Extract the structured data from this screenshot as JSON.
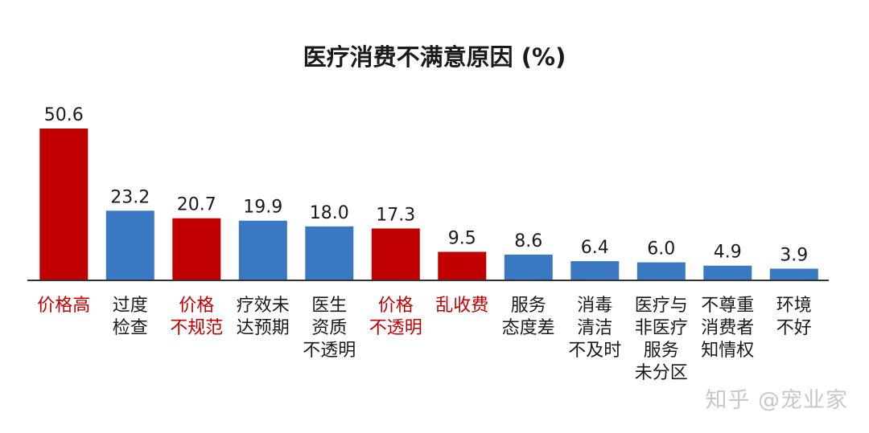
{
  "chart_data": {
    "type": "bar",
    "title": "医疗消费不满意原因 (%)",
    "categories": [
      [
        "价格高"
      ],
      [
        "过度",
        "检查"
      ],
      [
        "价格",
        "不规范"
      ],
      [
        "疗效未",
        "达预期"
      ],
      [
        "医生",
        "资质",
        "不透明"
      ],
      [
        "价格",
        "不透明"
      ],
      [
        "乱收费"
      ],
      [
        "服务",
        "态度差"
      ],
      [
        "消毒",
        "清洁",
        "不及时"
      ],
      [
        "医疗与",
        "非医疗",
        "服务",
        "未分区"
      ],
      [
        "不尊重",
        "消费者",
        "知情权"
      ],
      [
        "环境",
        "不好"
      ]
    ],
    "values": [
      50.6,
      23.2,
      20.7,
      19.9,
      18.0,
      17.3,
      9.5,
      8.6,
      6.4,
      6.0,
      4.9,
      3.9
    ],
    "value_labels": [
      "50.6",
      "23.2",
      "20.7",
      "19.9",
      "18.0",
      "17.3",
      "9.5",
      "8.6",
      "6.4",
      "6.0",
      "4.9",
      "3.9"
    ],
    "highlight": [
      true,
      false,
      true,
      false,
      false,
      true,
      true,
      false,
      false,
      false,
      false,
      false
    ],
    "ylim": [
      0,
      52
    ],
    "grid": false,
    "xlabel": "",
    "ylabel": ""
  },
  "colors": {
    "highlight": "#c00000",
    "normal": "#3a78c2",
    "axis": "#333333",
    "label": "#1a1a1a",
    "highlight_label": "#c00000"
  },
  "watermark": "知乎 @宠业家"
}
